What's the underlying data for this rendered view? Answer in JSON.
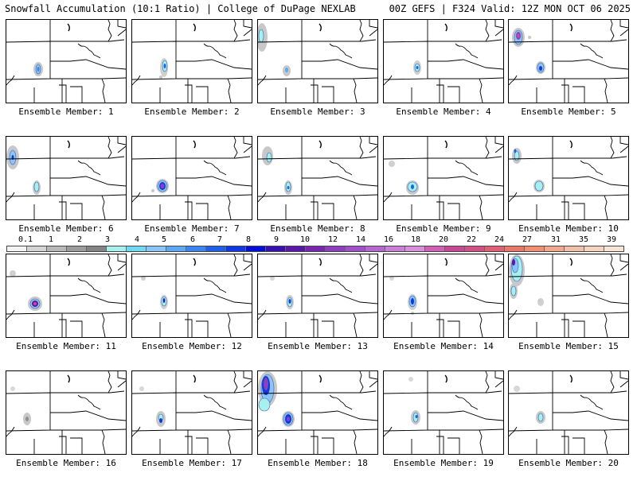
{
  "header": {
    "left_title": "Snowfall Accumulation (10:1 Ratio) | College of DuPage NEXLAB",
    "right_title": "00Z GEFS | F324 Valid: 12Z MON OCT 06 2025"
  },
  "colorbar": {
    "labels": [
      "0.1",
      "1",
      "2",
      "3",
      "4",
      "5",
      "6",
      "7",
      "8",
      "9",
      "10",
      "12",
      "14",
      "16",
      "18",
      "20",
      "22",
      "24",
      "27",
      "31",
      "35",
      "39"
    ],
    "colors": [
      "#f4f4f4",
      "#d4d4d4",
      "#b8b8b8",
      "#9c9c9c",
      "#848484",
      "#a8f0ec",
      "#70d8f0",
      "#8cc4f8",
      "#5ca8f4",
      "#3c84f0",
      "#2060e8",
      "#1038e0",
      "#0010d8",
      "#3a10b0",
      "#5a18a8",
      "#7828b0",
      "#8c40c0",
      "#a050c8",
      "#b468d0",
      "#c880d8",
      "#d890dc",
      "#d060b8",
      "#c84898",
      "#d05088",
      "#e06078",
      "#e87868",
      "#f09070",
      "#f0a890",
      "#f0c0a8",
      "#f4d4c0",
      "#f8e4d4"
    ]
  },
  "panels": [
    {
      "label": "Ensemble Member: 1"
    },
    {
      "label": "Ensemble Member: 2"
    },
    {
      "label": "Ensemble Member: 3"
    },
    {
      "label": "Ensemble Member: 4"
    },
    {
      "label": "Ensemble Member: 5"
    },
    {
      "label": "Ensemble Member: 6"
    },
    {
      "label": "Ensemble Member: 7"
    },
    {
      "label": "Ensemble Member: 8"
    },
    {
      "label": "Ensemble Member: 9"
    },
    {
      "label": "Ensemble Member: 10"
    },
    {
      "label": "Ensemble Member: 11"
    },
    {
      "label": "Ensemble Member: 12"
    },
    {
      "label": "Ensemble Member: 13"
    },
    {
      "label": "Ensemble Member: 14"
    },
    {
      "label": "Ensemble Member: 15"
    },
    {
      "label": "Ensemble Member: 16"
    },
    {
      "label": "Ensemble Member: 17"
    },
    {
      "label": "Ensemble Member: 18"
    },
    {
      "label": "Ensemble Member: 19"
    },
    {
      "label": "Ensemble Member: 20"
    }
  ]
}
